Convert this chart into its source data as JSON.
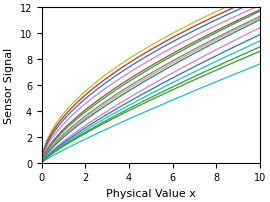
{
  "xlabel": "Physical Value x",
  "ylabel": "Sensor Signal",
  "xlim": [
    0,
    10
  ],
  "ylim": [
    0,
    12
  ],
  "x_ticks": [
    0,
    2,
    4,
    6,
    8,
    10
  ],
  "y_ticks": [
    0,
    2,
    4,
    6,
    8,
    10,
    12
  ],
  "figsize": [
    2.7,
    2.03
  ],
  "dpi": 100,
  "curves": [
    {
      "color": "#bcbd22",
      "a": 3.794,
      "b": 0.54
    },
    {
      "color": "#d62728",
      "a": 3.54,
      "b": 0.56
    },
    {
      "color": "#1f77b4",
      "a": 3.3,
      "b": 0.58
    },
    {
      "color": "#e377c2",
      "a": 2.98,
      "b": 0.61
    },
    {
      "color": "#8c564b",
      "a": 2.58,
      "b": 0.66
    },
    {
      "color": "#2ca02c",
      "a": 2.44,
      "b": 0.68
    },
    {
      "color": "#9467bd",
      "a": 2.2,
      "b": 0.71
    },
    {
      "color": "#bcbd22",
      "a": 2.08,
      "b": 0.73
    },
    {
      "color": "#1f77b4",
      "a": 1.96,
      "b": 0.75
    },
    {
      "color": "#e377c2",
      "a": 1.65,
      "b": 0.8
    },
    {
      "color": "#1f77b4",
      "a": 1.53,
      "b": 0.81
    },
    {
      "color": "#17becf",
      "a": 1.42,
      "b": 0.82
    },
    {
      "color": "#2ca02c",
      "a": 1.32,
      "b": 0.83
    },
    {
      "color": "#17becf",
      "a": 0.98,
      "b": 0.89
    },
    {
      "color": "#2ca02c",
      "a": 1.27,
      "b": 0.83
    }
  ]
}
